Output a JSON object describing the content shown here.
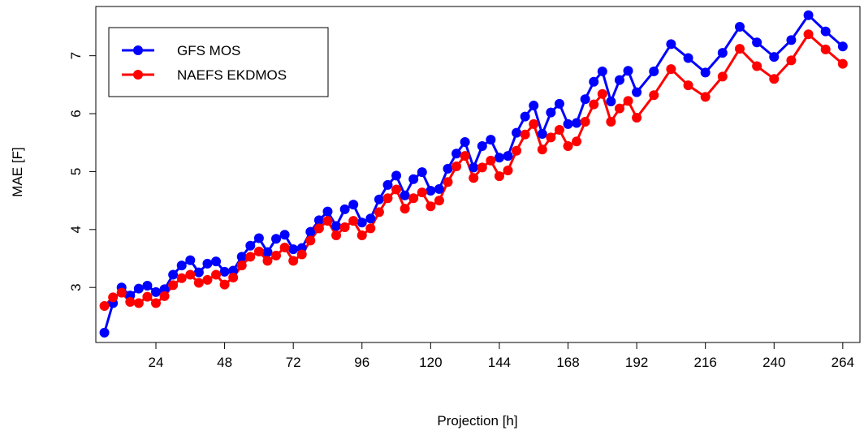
{
  "chart_data": {
    "type": "line",
    "title": "",
    "xlabel": "Projection [h]",
    "ylabel": "MAE [F]",
    "xlim": [
      3,
      270
    ],
    "ylim": [
      2.05,
      7.85
    ],
    "xticks": [
      24,
      48,
      72,
      96,
      120,
      144,
      168,
      192,
      216,
      240,
      264
    ],
    "yticks": [
      3,
      4,
      5,
      6,
      7
    ],
    "grid": false,
    "legend_position": "top-left",
    "x": [
      6,
      9,
      12,
      15,
      18,
      21,
      24,
      27,
      30,
      33,
      36,
      39,
      42,
      45,
      48,
      51,
      54,
      57,
      60,
      63,
      66,
      69,
      72,
      75,
      78,
      81,
      84,
      87,
      90,
      93,
      96,
      99,
      102,
      105,
      108,
      111,
      114,
      117,
      120,
      123,
      126,
      129,
      132,
      135,
      138,
      141,
      144,
      147,
      150,
      153,
      156,
      159,
      162,
      165,
      168,
      171,
      174,
      177,
      180,
      183,
      186,
      189,
      192,
      198,
      204,
      210,
      216,
      222,
      228,
      234,
      240,
      246,
      252,
      258,
      264
    ],
    "series": [
      {
        "name": "GFS MOS",
        "color": "#0000ff",
        "values": [
          2.22,
          2.73,
          3.0,
          2.86,
          2.98,
          3.03,
          2.92,
          2.97,
          3.22,
          3.38,
          3.47,
          3.26,
          3.41,
          3.45,
          3.27,
          3.29,
          3.53,
          3.72,
          3.85,
          3.61,
          3.84,
          3.91,
          3.66,
          3.68,
          3.96,
          4.16,
          4.31,
          4.06,
          4.35,
          4.43,
          4.12,
          4.19,
          4.52,
          4.77,
          4.93,
          4.59,
          4.87,
          4.99,
          4.67,
          4.7,
          5.05,
          5.31,
          5.51,
          5.07,
          5.44,
          5.55,
          5.24,
          5.27,
          5.67,
          5.95,
          6.14,
          5.65,
          6.02,
          6.17,
          5.82,
          5.84,
          6.25,
          6.55,
          6.73,
          6.21,
          6.58,
          6.74,
          6.37,
          6.73,
          7.2,
          6.96,
          6.71,
          7.05,
          7.5,
          7.23,
          6.98,
          7.27,
          7.7,
          7.42,
          7.16
        ]
      },
      {
        "name": "NAEFS EKDMOS",
        "color": "#ff0000",
        "values": [
          2.68,
          2.83,
          2.91,
          2.75,
          2.73,
          2.84,
          2.73,
          2.85,
          3.04,
          3.16,
          3.22,
          3.08,
          3.13,
          3.22,
          3.05,
          3.17,
          3.38,
          3.53,
          3.62,
          3.46,
          3.55,
          3.69,
          3.46,
          3.57,
          3.81,
          4.02,
          4.15,
          3.9,
          4.04,
          4.15,
          3.9,
          4.02,
          4.3,
          4.54,
          4.69,
          4.36,
          4.54,
          4.64,
          4.4,
          4.5,
          4.82,
          5.09,
          5.27,
          4.89,
          5.07,
          5.19,
          4.92,
          5.02,
          5.36,
          5.64,
          5.82,
          5.38,
          5.59,
          5.72,
          5.44,
          5.52,
          5.86,
          6.16,
          6.34,
          5.86,
          6.09,
          6.22,
          5.93,
          6.32,
          6.77,
          6.49,
          6.29,
          6.64,
          7.12,
          6.82,
          6.6,
          6.92,
          7.37,
          7.11,
          6.86
        ]
      }
    ]
  }
}
